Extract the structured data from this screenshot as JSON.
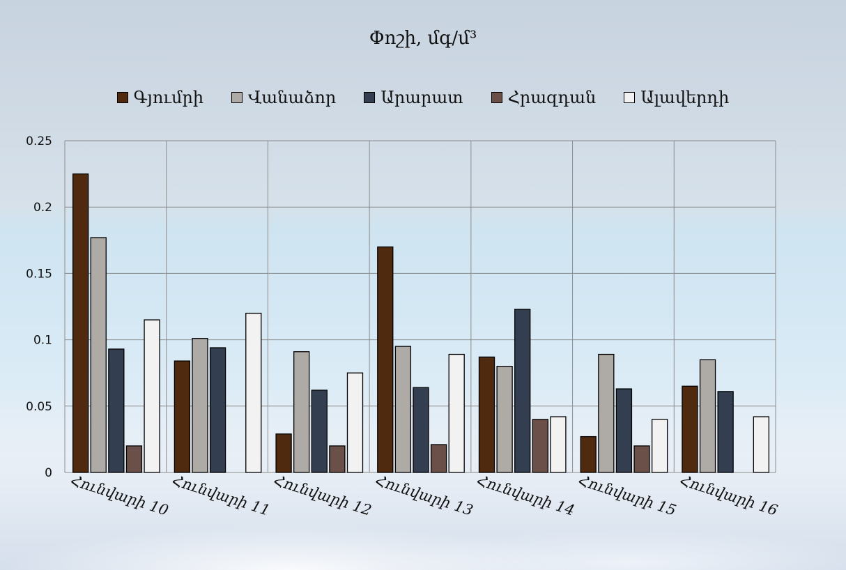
{
  "chart_data": {
    "type": "bar",
    "title": "Փոշի, մգ/մ³",
    "categories": [
      "Հունվարի 10",
      "Հունվարի 11",
      "Հունվարի 12",
      "Հունվարի 13",
      "Հունվարի 14",
      "Հունվարի 15",
      "Հունվարի 16"
    ],
    "series": [
      {
        "name": "Գյումրի",
        "color": "#4f2a0e",
        "values": [
          0.225,
          0.084,
          0.029,
          0.17,
          0.087,
          0.027,
          0.065
        ]
      },
      {
        "name": "Վանաձոր",
        "color": "#aeaaa6",
        "values": [
          0.177,
          0.101,
          0.091,
          0.095,
          0.08,
          0.089,
          0.085
        ]
      },
      {
        "name": "Արարատ",
        "color": "#333f50",
        "values": [
          0.093,
          0.094,
          0.062,
          0.064,
          0.123,
          0.063,
          0.061
        ]
      },
      {
        "name": "Հրազդան",
        "color": "#6a5048",
        "values": [
          0.02,
          null,
          0.02,
          0.021,
          0.04,
          0.02,
          null
        ]
      },
      {
        "name": "Ալավերդի",
        "color": "#f2f2f2",
        "values": [
          0.115,
          0.12,
          0.075,
          0.089,
          0.042,
          0.04,
          0.042
        ]
      }
    ],
    "y_ticks": [
      "0",
      "0.05",
      "0.1",
      "0.15",
      "0.2",
      "0.25"
    ],
    "ylim": [
      0,
      0.25
    ],
    "grid": true,
    "legend_position": "top"
  }
}
